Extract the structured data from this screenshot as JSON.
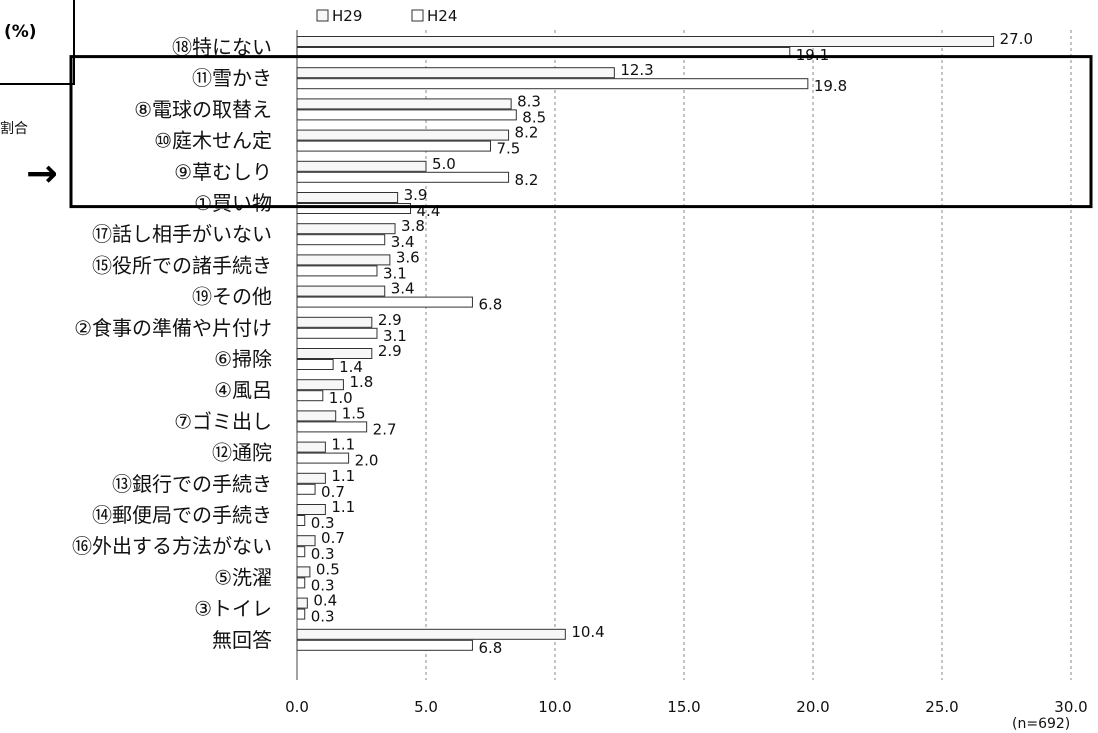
{
  "unit_label": "(%)",
  "side_note": "割合",
  "arrow_glyph": "→",
  "n_note": "(n=692)",
  "highlight": {
    "from_index": 1,
    "to_index": 5
  },
  "chart_data": {
    "type": "bar",
    "orientation": "horizontal",
    "title": "",
    "xlabel": "",
    "ylabel": "",
    "xlim": [
      0,
      30
    ],
    "ticks": [
      "0.0",
      "5.0",
      "10.0",
      "15.0",
      "20.0",
      "25.0",
      "30.0"
    ],
    "tick_values": [
      0,
      5,
      10,
      15,
      20,
      25,
      30
    ],
    "grid": true,
    "legend_position": "top",
    "categories": [
      "⑱特にない",
      "⑪雪かき",
      "⑧電球の取替え",
      "⑩庭木せん定",
      "⑨草むしり",
      "①買い物",
      "⑰話し相手がいない",
      "⑮役所での諸手続き",
      "⑲その他",
      "②食事の準備や片付け",
      "⑥掃除",
      "④風呂",
      "⑦ゴミ出し",
      "⑫通院",
      "⑬銀行での手続き",
      "⑭郵便局での手続き",
      "⑯外出する方法がない",
      "⑤洗濯",
      "③トイレ",
      "無回答"
    ],
    "series": [
      {
        "name": "H29",
        "values": [
          27.0,
          12.3,
          8.3,
          8.2,
          5.0,
          3.9,
          3.8,
          3.6,
          3.4,
          2.9,
          2.9,
          1.8,
          1.5,
          1.1,
          1.1,
          1.1,
          0.7,
          0.5,
          0.4,
          10.4
        ],
        "labels": [
          "27.0",
          "12.3",
          "8.3",
          "8.2",
          "5.0",
          "3.9",
          "3.8",
          "3.6",
          "3.4",
          "2.9",
          "2.9",
          "1.8",
          "1.5",
          "1.1",
          "1.1",
          "1.1",
          "0.7",
          "0.5",
          "0.4",
          "10.4"
        ]
      },
      {
        "name": "H24",
        "values": [
          19.1,
          19.8,
          8.5,
          7.5,
          8.2,
          4.4,
          3.4,
          3.1,
          6.8,
          3.1,
          1.4,
          1.0,
          2.7,
          2.0,
          0.7,
          0.3,
          0.3,
          0.3,
          0.3,
          6.8
        ],
        "labels": [
          "19.1",
          "19.8",
          "8.5",
          "7.5",
          "8.2",
          "4.4",
          "3.4",
          "3.1",
          "6.8",
          "3.1",
          "1.4",
          "1.0",
          "2.7",
          "2.0",
          "0.7",
          "0.3",
          "0.3",
          "0.3",
          "0.3",
          "6.8"
        ]
      }
    ]
  }
}
